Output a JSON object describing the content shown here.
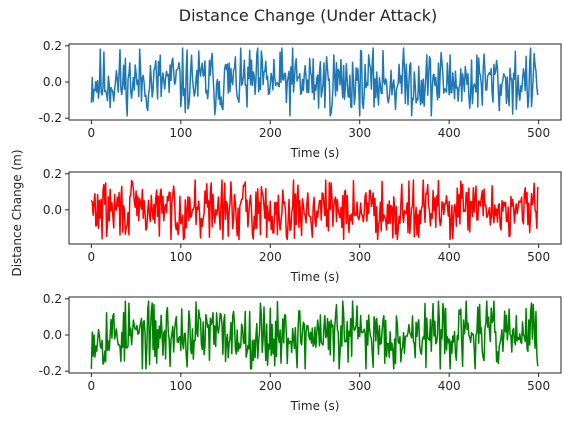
{
  "figure_title": "Distance Change (Under Attack)",
  "shared_ylabel": "Distance Change (m)",
  "chart_data": [
    {
      "type": "line",
      "color": "#1f77b4",
      "xlabel": "Time (s)",
      "xlim": [
        -25,
        525
      ],
      "ylim": [
        -0.21,
        0.21
      ],
      "xticks": [
        0,
        100,
        200,
        300,
        400,
        500
      ],
      "yticks": [
        -0.2,
        0.0,
        0.2
      ],
      "ytick_labels": [
        "-0.2",
        "0.0",
        "0.2"
      ],
      "n_points": 500,
      "amplitude": 0.17,
      "seed": 11
    },
    {
      "type": "line",
      "color": "#ff0000",
      "xlabel": "Time (s)",
      "xlim": [
        -25,
        525
      ],
      "ylim": [
        -0.19,
        0.21
      ],
      "xticks": [
        0,
        100,
        200,
        300,
        400,
        500
      ],
      "yticks": [
        0.0,
        0.2
      ],
      "ytick_labels": [
        "0.0",
        "0.2"
      ],
      "n_points": 500,
      "amplitude": 0.15,
      "seed": 29
    },
    {
      "type": "line",
      "color": "#008000",
      "xlabel": "Time (s)",
      "xlim": [
        -25,
        525
      ],
      "ylim": [
        -0.21,
        0.21
      ],
      "xticks": [
        0,
        100,
        200,
        300,
        400,
        500
      ],
      "yticks": [
        -0.2,
        0.0,
        0.2
      ],
      "ytick_labels": [
        "-0.2",
        "0.0",
        "0.2"
      ],
      "n_points": 500,
      "amplitude": 0.17,
      "seed": 53
    }
  ]
}
